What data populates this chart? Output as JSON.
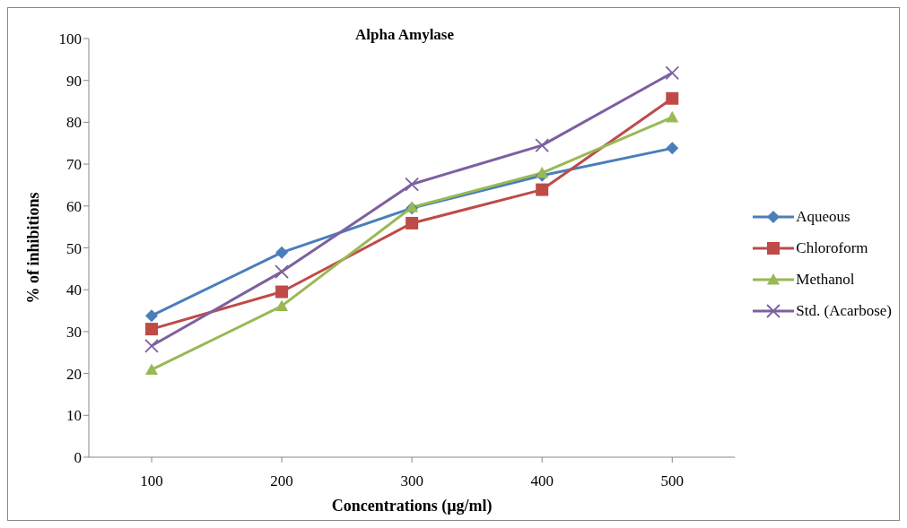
{
  "chart_data": {
    "type": "line",
    "title": "Alpha Amylase",
    "xlabel": "Concentrations (µg/ml)",
    "ylabel": "% of inhibitions",
    "categories": [
      "100",
      "200",
      "300",
      "400",
      "500"
    ],
    "series": [
      {
        "name": "Aqueous",
        "color": "#4a7ebb",
        "marker": "diamond",
        "values": [
          33.8,
          48.9,
          59.5,
          67.3,
          73.8
        ]
      },
      {
        "name": "Chloroform",
        "color": "#be4b48",
        "marker": "square",
        "values": [
          30.6,
          39.5,
          55.9,
          63.9,
          85.7
        ]
      },
      {
        "name": "Methanol",
        "color": "#98b954",
        "marker": "triangle",
        "values": [
          20.9,
          36.1,
          59.7,
          67.9,
          81.2
        ]
      },
      {
        "name": "Std. (Acarbose)",
        "color": "#7d60a0",
        "marker": "cross",
        "values": [
          26.6,
          44.3,
          65.2,
          74.5,
          91.8
        ]
      }
    ],
    "ylim": [
      0,
      100
    ],
    "yticks": [
      0,
      10,
      20,
      30,
      40,
      50,
      60,
      70,
      80,
      90,
      100
    ],
    "grid": false,
    "legend": "right"
  }
}
